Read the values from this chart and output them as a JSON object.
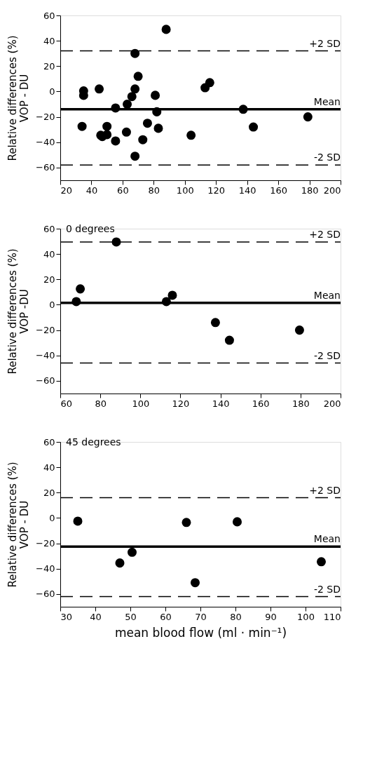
{
  "chart_data": [
    {
      "type": "scatter",
      "ylabel": "Relative differences (%)\nVOP - DU",
      "x": [
        88,
        68,
        70,
        35,
        35,
        45,
        68,
        66,
        63,
        55.5,
        81,
        82,
        113,
        116,
        137.5,
        179,
        144,
        104,
        34,
        50,
        46,
        47,
        50,
        55.5,
        62.5,
        76,
        73,
        83,
        68
      ],
      "series": [
        {
          "color": "#000000",
          "values": [
            49,
            30,
            12,
            0.5,
            -3,
            2,
            2,
            -4,
            -10,
            -13,
            -3,
            -16,
            3,
            7,
            -14,
            -20,
            -28,
            -34.5,
            -27.5,
            -27.5,
            -34.5,
            -35.5,
            -34,
            -39,
            -32,
            -25,
            -38,
            -29,
            -51
          ]
        }
      ],
      "marker": "circle",
      "xlim": [
        20,
        200
      ],
      "xticks": [
        20,
        40,
        60,
        80,
        100,
        120,
        140,
        160,
        180,
        200
      ],
      "ylim": [
        -70,
        60
      ],
      "yticks": [
        -60,
        -40,
        -20,
        0,
        20,
        40,
        60
      ],
      "grid": false,
      "ref_lines": [
        {
          "axis": "y",
          "value": 32,
          "label": "+2 SD",
          "line_style": "dashed"
        },
        {
          "axis": "y",
          "value": -14,
          "label": "Mean",
          "line_style": "solid"
        },
        {
          "axis": "y",
          "value": -58,
          "label": "-2 SD",
          "line_style": "dashed"
        }
      ]
    },
    {
      "type": "scatter",
      "ylabel": "Relative differences (%)\nVOP -DU",
      "annotations": [
        "0 degrees"
      ],
      "x": [
        68,
        70,
        88,
        113,
        116,
        137.5,
        144.5,
        179.5
      ],
      "series": [
        {
          "color": "#000000",
          "values": [
            2.5,
            12.5,
            49.5,
            2.5,
            7.5,
            -14,
            -28,
            -20
          ]
        }
      ],
      "marker": "circle",
      "xlim": [
        60,
        200
      ],
      "xticks": [
        60,
        80,
        100,
        120,
        140,
        160,
        180,
        200
      ],
      "ylim": [
        -70,
        60
      ],
      "yticks": [
        -60,
        -40,
        -20,
        0,
        20,
        40,
        60
      ],
      "grid": false,
      "ref_lines": [
        {
          "axis": "y",
          "value": 49.5,
          "label": "+2 SD",
          "line_style": "dashed"
        },
        {
          "axis": "y",
          "value": 1.5,
          "label": "Mean",
          "line_style": "solid"
        },
        {
          "axis": "y",
          "value": -46,
          "label": "-2 SD",
          "line_style": "dashed"
        }
      ]
    },
    {
      "type": "scatter",
      "ylabel": "Relative differences (%)\nVOP - DU",
      "xlabel": "mean blood flow (ml · min⁻¹)",
      "annotations": [
        "45 degrees"
      ],
      "x": [
        35,
        47,
        50.5,
        66,
        68.5,
        80.5,
        104.5
      ],
      "series": [
        {
          "color": "#000000",
          "values": [
            -2.5,
            -35.5,
            -27,
            -3.5,
            -51,
            -3,
            -34.5
          ]
        }
      ],
      "marker": "circle",
      "xlim": [
        30,
        110
      ],
      "xticks": [
        30,
        40,
        50,
        60,
        70,
        80,
        90,
        100,
        110
      ],
      "ylim": [
        -70,
        60
      ],
      "yticks": [
        -60,
        -40,
        -20,
        0,
        20,
        40,
        60
      ],
      "grid": false,
      "ref_lines": [
        {
          "axis": "y",
          "value": 16,
          "label": "+2 SD",
          "line_style": "dashed"
        },
        {
          "axis": "y",
          "value": -22.5,
          "label": "Mean",
          "line_style": "solid"
        },
        {
          "axis": "y",
          "value": -62,
          "label": "-2 SD",
          "line_style": "dashed"
        }
      ]
    }
  ]
}
